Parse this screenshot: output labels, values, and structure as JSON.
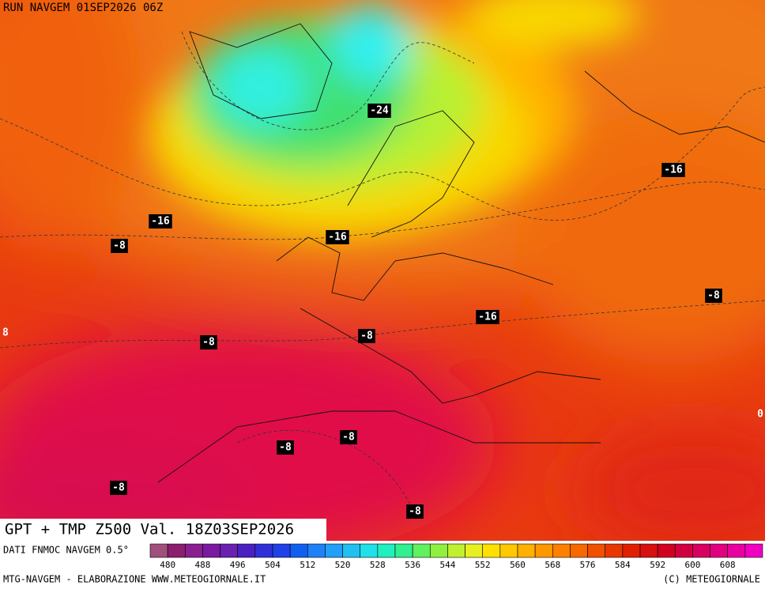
{
  "header": {
    "run": "RUN NAVGEM 01SEP2026 06Z"
  },
  "map": {
    "contour_labels": [
      "-24",
      "-16",
      "-16",
      "-16",
      "-8",
      "-8",
      "-16",
      "-8",
      "-8",
      "-8",
      "-8",
      "-8",
      "-8"
    ],
    "edge_labels": [
      "8",
      "0"
    ]
  },
  "footer": {
    "title": "GPT + TMP Z500 Val. 18Z03SEP2026",
    "source": "DATI FNMOC NAVGEM 0.5°",
    "credit": "MTG-NAVGEM - ELABORAZIONE WWW.METEOGIORNALE.IT",
    "copyright": "(C) METEOGIORNALE"
  },
  "colorbar": {
    "labels": [
      480,
      488,
      496,
      504,
      512,
      520,
      528,
      536,
      544,
      552,
      560,
      568,
      576,
      584,
      592,
      600,
      608
    ],
    "colors": [
      "#a0507a",
      "#8b1e6e",
      "#8a2090",
      "#7a1aa0",
      "#6a20b0",
      "#4a20c0",
      "#3030d8",
      "#2040e8",
      "#1060f0",
      "#2080f8",
      "#20a0f8",
      "#20c0f0",
      "#20e0e8",
      "#20f0c0",
      "#30f090",
      "#60f060",
      "#90f040",
      "#c0f030",
      "#e8f020",
      "#ffe000",
      "#ffc800",
      "#ffb000",
      "#ff9800",
      "#ff8000",
      "#f86800",
      "#f05000",
      "#e83800",
      "#e02000",
      "#d81010",
      "#d00020",
      "#d00040",
      "#d80060",
      "#e00080",
      "#e800a0",
      "#f000c0"
    ]
  }
}
